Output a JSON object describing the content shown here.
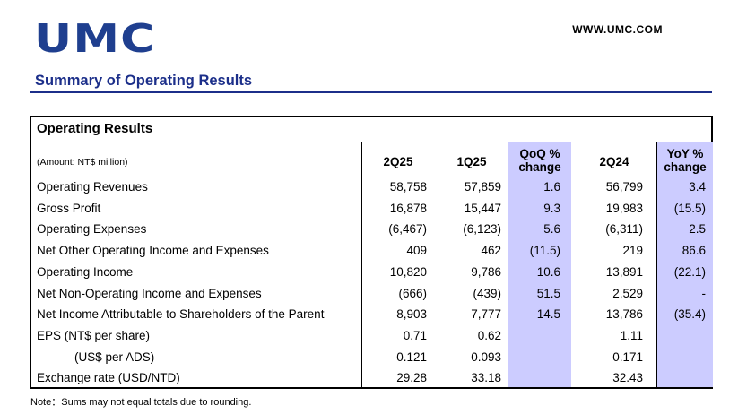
{
  "header": {
    "logo_text": "UMC",
    "url": "WWW.UMC.COM",
    "page_title": "Summary of Operating Results"
  },
  "table": {
    "section_title": "Operating Results",
    "amount_note": "(Amount: NT$ million)",
    "columns": {
      "c2q25": "2Q25",
      "c1q25": "1Q25",
      "qoq_line1": "QoQ %",
      "qoq_line2": "change",
      "c2q24": "2Q24",
      "yoy_line1": "YoY %",
      "yoy_line2": "change"
    },
    "highlight_color": "#ccccff",
    "rows": [
      {
        "label": "Operating Revenues",
        "q2q25": "58,758",
        "q1q25": "57,859",
        "qoq": "1.6",
        "q2q24": "56,799",
        "yoy": "3.4"
      },
      {
        "label": "Gross Profit",
        "q2q25": "16,878",
        "q1q25": "15,447",
        "qoq": "9.3",
        "q2q24": "19,983",
        "yoy": "(15.5)"
      },
      {
        "label": "Operating Expenses",
        "q2q25": "(6,467)",
        "q1q25": "(6,123)",
        "qoq": "5.6",
        "q2q24": "(6,311)",
        "yoy": "2.5"
      },
      {
        "label": "Net Other Operating Income and Expenses",
        "q2q25": "409",
        "q1q25": "462",
        "qoq": "(11.5)",
        "q2q24": "219",
        "yoy": "86.6"
      },
      {
        "label": "Operating Income",
        "q2q25": "10,820",
        "q1q25": "9,786",
        "qoq": "10.6",
        "q2q24": "13,891",
        "yoy": "(22.1)"
      },
      {
        "label": "Net Non-Operating Income and Expenses",
        "q2q25": "(666)",
        "q1q25": "(439)",
        "qoq": "51.5",
        "q2q24": "2,529",
        "yoy": "-"
      },
      {
        "label": "Net Income Attributable to Shareholders of the Parent",
        "q2q25": "8,903",
        "q1q25": "7,777",
        "qoq": "14.5",
        "q2q24": "13,786",
        "yoy": "(35.4)"
      },
      {
        "label": "EPS (NT$ per share)",
        "q2q25": "0.71",
        "q1q25": "0.62",
        "qoq": "",
        "q2q24": "1.11",
        "yoy": ""
      },
      {
        "label": "(US$ per ADS)",
        "indent": true,
        "q2q25": "0.121",
        "q1q25": "0.093",
        "qoq": "",
        "q2q24": "0.171",
        "yoy": ""
      },
      {
        "label": "Exchange rate (USD/NTD)",
        "q2q25": "29.28",
        "q1q25": "33.18",
        "qoq": "",
        "q2q24": "32.43",
        "yoy": ""
      }
    ]
  },
  "footnote": "Note：Sums may not equal totals due to rounding."
}
